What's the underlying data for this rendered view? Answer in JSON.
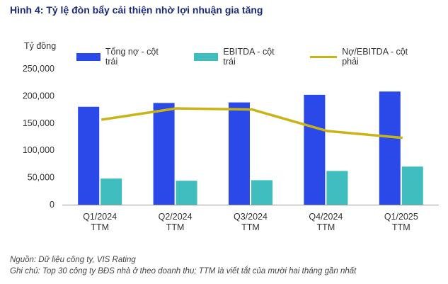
{
  "title": "Hình 4: Tỷ lệ đòn bẩy cải thiện nhờ lợi nhuận gia tăng",
  "y_unit": "Tỷ đồng",
  "colors": {
    "debt": "#2b48e8",
    "ebitda": "#3fbdbf",
    "ratio": "#c8b416",
    "axis": "#999999"
  },
  "chart_data": {
    "type": "bar",
    "categories": [
      [
        "Q1/2024",
        "TTM"
      ],
      [
        "Q2/2024",
        "TTM"
      ],
      [
        "Q3/2024",
        "TTM"
      ],
      [
        "Q4/2024",
        "TTM"
      ],
      [
        "Q1/2025",
        "TTM"
      ]
    ],
    "series": [
      {
        "name": "Tổng nợ - cột trái",
        "type": "bar",
        "axis": "left",
        "values": [
          180000,
          187000,
          188000,
          202000,
          208000
        ]
      },
      {
        "name": "EBITDA - cột trái",
        "type": "bar",
        "axis": "left",
        "values": [
          48000,
          44000,
          45000,
          62000,
          70000
        ]
      },
      {
        "name": "Nợ/EBITDA - cột phải",
        "type": "line",
        "axis": "right",
        "values": [
          3.75,
          4.25,
          4.2,
          3.25,
          2.95
        ]
      }
    ],
    "y_left": {
      "min": 0,
      "max": 250000,
      "ticks": [
        "250,000",
        "200,000",
        "150,000",
        "100,000",
        "50,000",
        "0"
      ]
    },
    "y_right": {
      "min": 0,
      "max": 6
    },
    "legend_position": "top",
    "grid": false
  },
  "notes": {
    "source": "Nguồn: Dữ liệu công ty, VIS Rating",
    "note": "Ghi chú: Top 30 công ty BĐS nhà ở theo doanh thu; TTM là viết tắt của mười hai tháng gần nhất"
  }
}
